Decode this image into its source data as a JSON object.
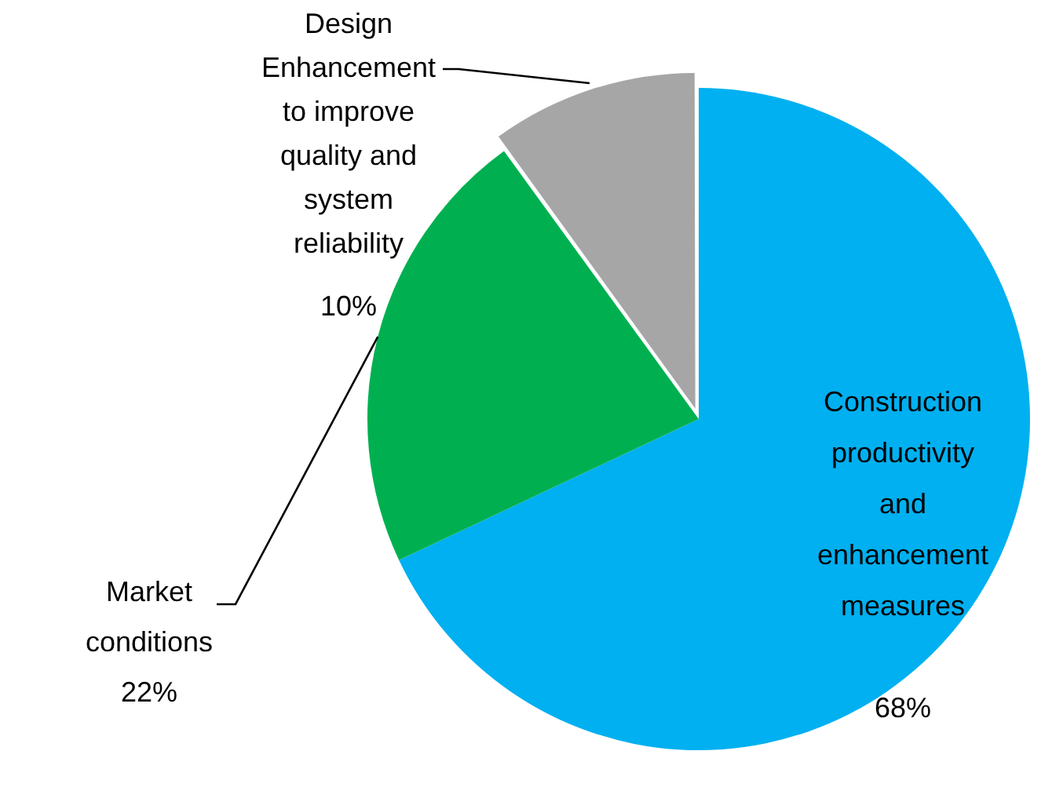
{
  "chart_data": {
    "type": "pie",
    "categories": [
      "Construction productivity and enhancement measures",
      "Market conditions",
      "Design Enhancement to improve quality and system reliability"
    ],
    "values": [
      68,
      22,
      10
    ],
    "colors": [
      "#00b0f0",
      "#00b050",
      "#a6a6a6"
    ],
    "value_labels": [
      "68%",
      "22%",
      "10%"
    ],
    "legend": false
  }
}
